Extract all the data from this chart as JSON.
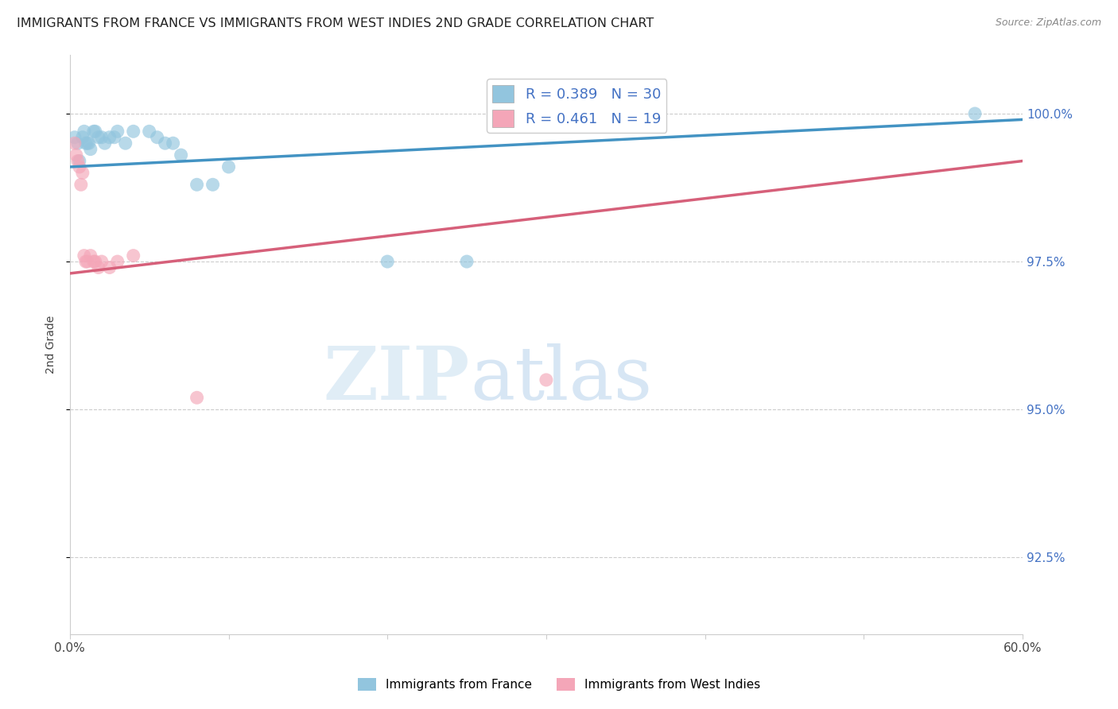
{
  "title": "IMMIGRANTS FROM FRANCE VS IMMIGRANTS FROM WEST INDIES 2ND GRADE CORRELATION CHART",
  "source": "Source: ZipAtlas.com",
  "ylabel": "2nd Grade",
  "ylabel_values": [
    92.5,
    95.0,
    97.5,
    100.0
  ],
  "xmin": 0.0,
  "xmax": 60.0,
  "ymin": 91.2,
  "ymax": 101.0,
  "legend_france": "Immigrants from France",
  "legend_wi": "Immigrants from West Indies",
  "R_france": 0.389,
  "N_france": 30,
  "R_wi": 0.461,
  "N_wi": 19,
  "france_color": "#92c5de",
  "wi_color": "#f4a6b8",
  "france_line_color": "#4393c3",
  "wi_line_color": "#d6607a",
  "france_points_x": [
    0.3,
    0.5,
    0.6,
    0.8,
    0.9,
    1.0,
    1.1,
    1.2,
    1.3,
    1.5,
    1.6,
    1.8,
    2.0,
    2.2,
    2.5,
    2.8,
    3.0,
    3.5,
    4.0,
    5.0,
    5.5,
    6.0,
    6.5,
    7.0,
    8.0,
    9.0,
    10.0,
    20.0,
    25.0,
    57.0
  ],
  "france_points_y": [
    99.6,
    99.5,
    99.2,
    99.6,
    99.7,
    99.5,
    99.5,
    99.5,
    99.4,
    99.7,
    99.7,
    99.6,
    99.6,
    99.5,
    99.6,
    99.6,
    99.7,
    99.5,
    99.7,
    99.7,
    99.6,
    99.5,
    99.5,
    99.3,
    98.8,
    98.8,
    99.1,
    97.5,
    97.5,
    100.0
  ],
  "wi_points_x": [
    0.3,
    0.4,
    0.5,
    0.6,
    0.7,
    0.8,
    0.9,
    1.0,
    1.1,
    1.3,
    1.5,
    1.6,
    1.8,
    2.0,
    2.5,
    3.0,
    4.0,
    8.0,
    30.0
  ],
  "wi_points_y": [
    99.5,
    99.3,
    99.2,
    99.1,
    98.8,
    99.0,
    97.6,
    97.5,
    97.5,
    97.6,
    97.5,
    97.5,
    97.4,
    97.5,
    97.4,
    97.5,
    97.6,
    95.2,
    95.5
  ],
  "france_line_x0": 0.0,
  "france_line_y0": 99.1,
  "france_line_x1": 60.0,
  "france_line_y1": 99.9,
  "wi_line_x0": 0.0,
  "wi_line_y0": 97.3,
  "wi_line_x1": 60.0,
  "wi_line_y1": 99.2,
  "watermark_zip": "ZIP",
  "watermark_atlas": "atlas",
  "background_color": "#ffffff"
}
